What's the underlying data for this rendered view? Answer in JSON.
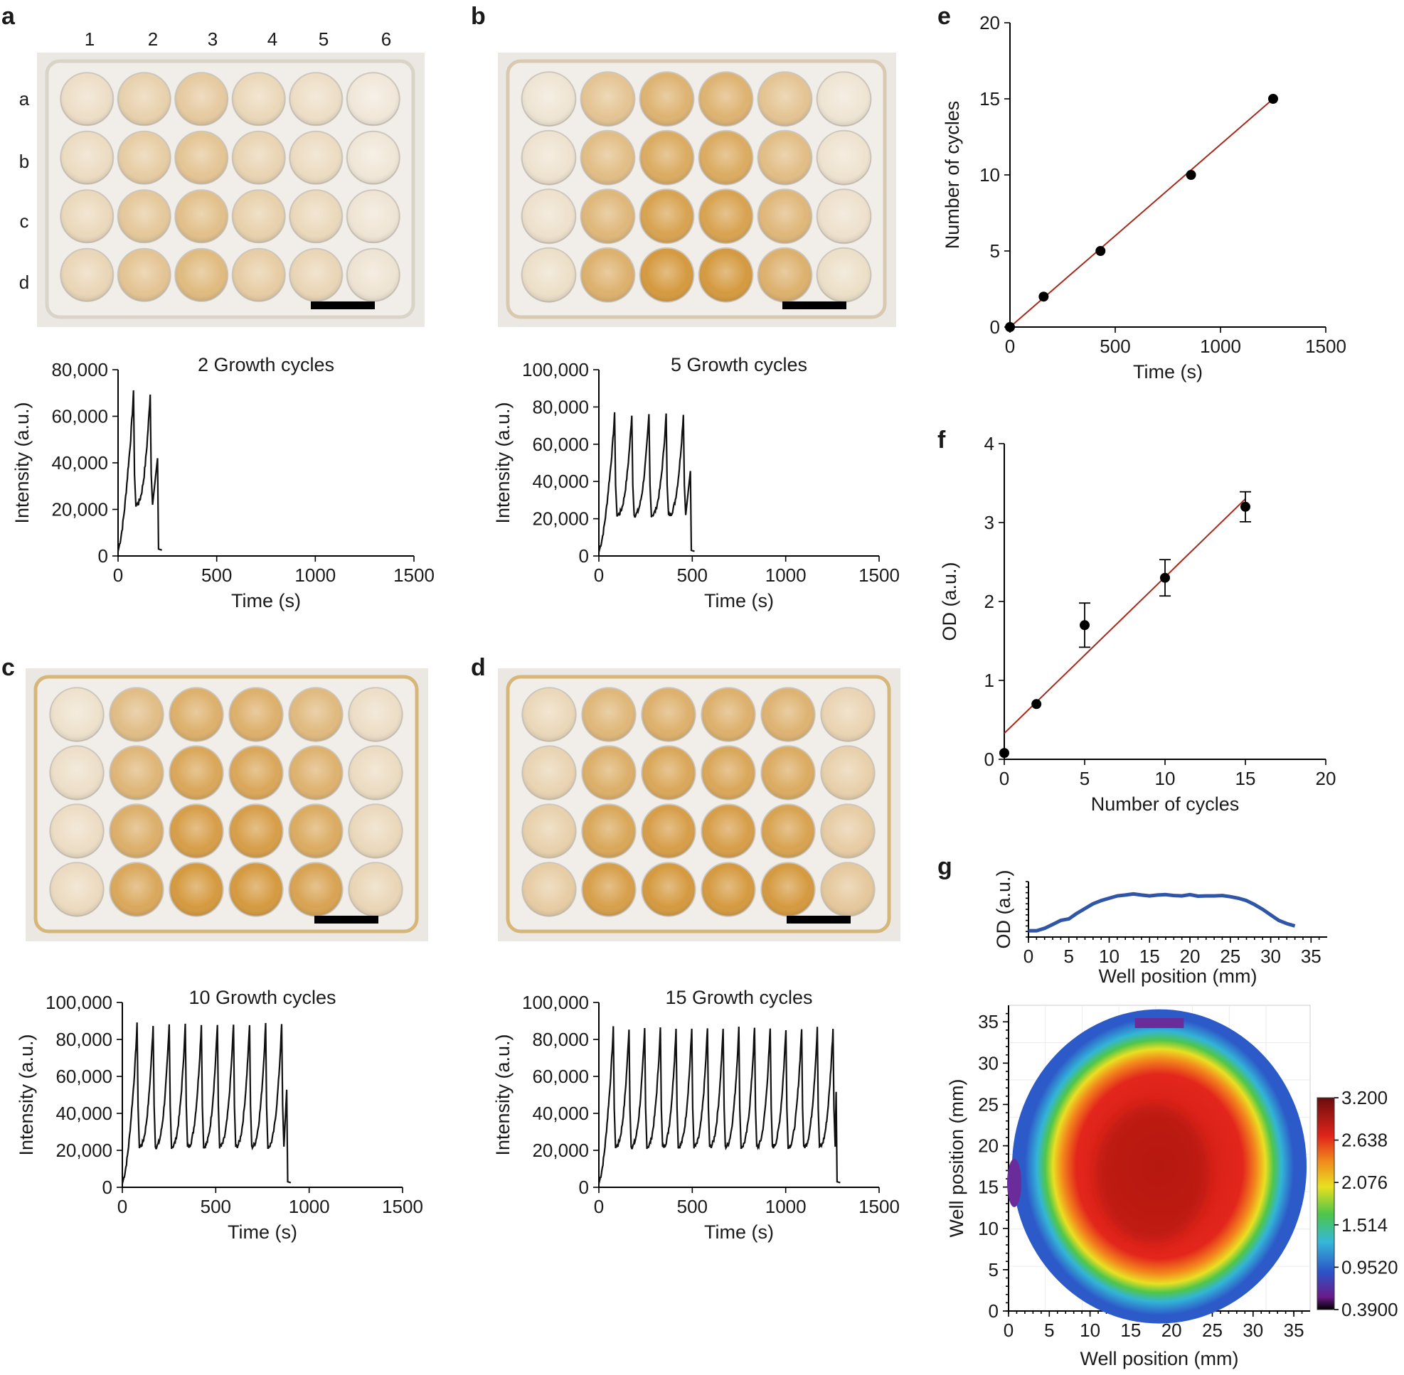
{
  "panels": {
    "a": {
      "label": "a",
      "columns": [
        "1",
        "2",
        "3",
        "4",
        "5",
        "6"
      ],
      "rows": [
        "a",
        "b",
        "c",
        "d"
      ],
      "tint": [
        0.3,
        0.5,
        0.6,
        0.4,
        0.3,
        0.15
      ]
    },
    "b": {
      "label": "b",
      "tint": [
        0.2,
        0.7,
        0.95,
        0.95,
        0.7,
        0.2
      ]
    },
    "c": {
      "label": "c",
      "tint": [
        0.25,
        0.8,
        1.0,
        1.0,
        0.85,
        0.3
      ]
    },
    "d": {
      "label": "d",
      "tint": [
        0.4,
        0.9,
        1.0,
        1.0,
        0.95,
        0.45
      ]
    },
    "e": {
      "label": "e"
    },
    "f": {
      "label": "f"
    },
    "g": {
      "label": "g"
    }
  },
  "colors": {
    "trace": "#111111",
    "fit": "#a52a1c",
    "profile": "#2f55a8",
    "marker": "#000000"
  },
  "chart_data": [
    {
      "id": "trace-a",
      "type": "line",
      "title": "2 Growth cycles",
      "xlabel": "Time (s)",
      "ylabel": "Intensity (a.u.)",
      "xlim": [
        0,
        1500
      ],
      "ylim": [
        0,
        80000
      ],
      "xticks": [
        0,
        500,
        1000,
        1500
      ],
      "xtick_labels": [
        "0",
        "500",
        "1000",
        "1500"
      ],
      "yticks": [
        0,
        20000,
        40000,
        60000,
        80000
      ],
      "ytick_labels": [
        "0",
        "20,000",
        "40,000",
        "60,000",
        "80,000"
      ],
      "cycles": 2,
      "period_s": 85,
      "peak_value": 70000,
      "base_value": 22000,
      "end_time_s": 200
    },
    {
      "id": "trace-b",
      "type": "line",
      "title": "5 Growth cycles",
      "xlabel": "Time (s)",
      "ylabel": "Intensity (a.u.)",
      "xlim": [
        0,
        1500
      ],
      "ylim": [
        0,
        100000
      ],
      "xticks": [
        0,
        500,
        1000,
        1500
      ],
      "xtick_labels": [
        "0",
        "500",
        "1000",
        "1500"
      ],
      "yticks": [
        0,
        20000,
        40000,
        60000,
        80000,
        100000
      ],
      "ytick_labels": [
        "0",
        "20,000",
        "40,000",
        "60,000",
        "80,000",
        "100,000"
      ],
      "cycles": 5,
      "period_s": 92,
      "peak_value": 76000,
      "base_value": 22000,
      "end_time_s": 490
    },
    {
      "id": "trace-c",
      "type": "line",
      "title": "10 Growth cycles",
      "xlabel": "Time (s)",
      "ylabel": "Intensity (a.u.)",
      "xlim": [
        0,
        1500
      ],
      "ylim": [
        0,
        100000
      ],
      "xticks": [
        0,
        500,
        1000,
        1500
      ],
      "xtick_labels": [
        "0",
        "500",
        "1000",
        "1500"
      ],
      "yticks": [
        0,
        20000,
        40000,
        60000,
        80000,
        100000
      ],
      "ytick_labels": [
        "0",
        "20,000",
        "40,000",
        "60,000",
        "80,000",
        "100,000"
      ],
      "cycles": 10,
      "period_s": 86,
      "peak_value": 88000,
      "base_value": 22000,
      "end_time_s": 880
    },
    {
      "id": "trace-d",
      "type": "line",
      "title": "15 Growth cycles",
      "xlabel": "Time (s)",
      "ylabel": "Intensity (a.u.)",
      "xlim": [
        0,
        1500
      ],
      "ylim": [
        0,
        100000
      ],
      "xticks": [
        0,
        500,
        1000,
        1500
      ],
      "xtick_labels": [
        "0",
        "500",
        "1000",
        "1500"
      ],
      "yticks": [
        0,
        20000,
        40000,
        60000,
        80000,
        100000
      ],
      "ytick_labels": [
        "0",
        "20,000",
        "40,000",
        "60,000",
        "80,000",
        "100,000"
      ],
      "cycles": 15,
      "period_s": 84,
      "peak_value": 86000,
      "base_value": 22000,
      "end_time_s": 1270
    },
    {
      "id": "scatter-e",
      "type": "scatter",
      "xlabel": "Time (s)",
      "ylabel": "Number of cycles",
      "xlim": [
        0,
        1500
      ],
      "ylim": [
        0,
        20
      ],
      "xticks": [
        0,
        500,
        1000,
        1500
      ],
      "xtick_labels": [
        "0",
        "500",
        "1000",
        "1500"
      ],
      "yticks": [
        0,
        5,
        10,
        15,
        20
      ],
      "ytick_labels": [
        "0",
        "5",
        "10",
        "15",
        "20"
      ],
      "x": [
        0,
        160,
        430,
        860,
        1250
      ],
      "y": [
        0,
        2,
        5,
        10,
        15
      ],
      "fit": {
        "x": [
          0,
          1250
        ],
        "y": [
          0,
          15
        ]
      }
    },
    {
      "id": "scatter-f",
      "type": "scatter",
      "xlabel": "Number of cycles",
      "ylabel": "OD (a.u.)",
      "xlim": [
        0,
        20
      ],
      "ylim": [
        0,
        4
      ],
      "xticks": [
        0,
        5,
        10,
        15,
        20
      ],
      "xtick_labels": [
        "0",
        "5",
        "10",
        "15",
        "20"
      ],
      "yticks": [
        0,
        1,
        2,
        3,
        4
      ],
      "ytick_labels": [
        "0",
        "1",
        "2",
        "3",
        "4"
      ],
      "x": [
        0,
        2,
        5,
        10,
        15
      ],
      "y": [
        0.08,
        0.7,
        1.7,
        2.3,
        3.2
      ],
      "err": [
        0,
        0,
        0.28,
        0.23,
        0.19
      ],
      "fit": {
        "x": [
          0,
          15
        ],
        "y": [
          0.33,
          3.3
        ]
      }
    },
    {
      "id": "profile-g",
      "type": "line",
      "xlabel": "Well position (mm)",
      "ylabel": "OD (a.u.)",
      "xlim": [
        0,
        37
      ],
      "ylim": [
        0,
        3.5
      ],
      "xticks": [
        0,
        5,
        10,
        15,
        20,
        25,
        30,
        35
      ],
      "xtick_labels": [
        "0",
        "5",
        "10",
        "15",
        "20",
        "25",
        "30",
        "35"
      ],
      "x": [
        0,
        1,
        2,
        3,
        4,
        5,
        6,
        7,
        8,
        9,
        10,
        11,
        12,
        13,
        14,
        15,
        16,
        17,
        18,
        19,
        20,
        21,
        22,
        23,
        24,
        25,
        26,
        27,
        28,
        29,
        30,
        31,
        32,
        33
      ],
      "y": [
        0.4,
        0.4,
        0.55,
        0.8,
        1.05,
        1.15,
        1.5,
        1.8,
        2.1,
        2.3,
        2.45,
        2.6,
        2.65,
        2.72,
        2.65,
        2.6,
        2.65,
        2.68,
        2.62,
        2.6,
        2.68,
        2.58,
        2.6,
        2.6,
        2.62,
        2.55,
        2.45,
        2.3,
        2.05,
        1.75,
        1.4,
        1.05,
        0.85,
        0.7
      ]
    },
    {
      "id": "heatmap-g",
      "type": "heatmap",
      "xlabel": "Well position (mm)",
      "ylabel": "Well position (mm)",
      "xlim": [
        0,
        37
      ],
      "ylim": [
        0,
        37
      ],
      "xticks": [
        0,
        5,
        10,
        15,
        20,
        25,
        30,
        35
      ],
      "xtick_labels": [
        "0",
        "5",
        "10",
        "15",
        "20",
        "25",
        "30",
        "35"
      ],
      "yticks": [
        0,
        5,
        10,
        15,
        20,
        25,
        30,
        35
      ],
      "ytick_labels": [
        "0",
        "5",
        "10",
        "15",
        "20",
        "25",
        "30",
        "35"
      ],
      "center": [
        18.5,
        17.5
      ],
      "radius_x": 16.5,
      "radius_y": 18.5,
      "colorbar_ticks": [
        "3.200",
        "2.638",
        "2.076",
        "1.514",
        "0.9520",
        "0.3900"
      ]
    }
  ]
}
